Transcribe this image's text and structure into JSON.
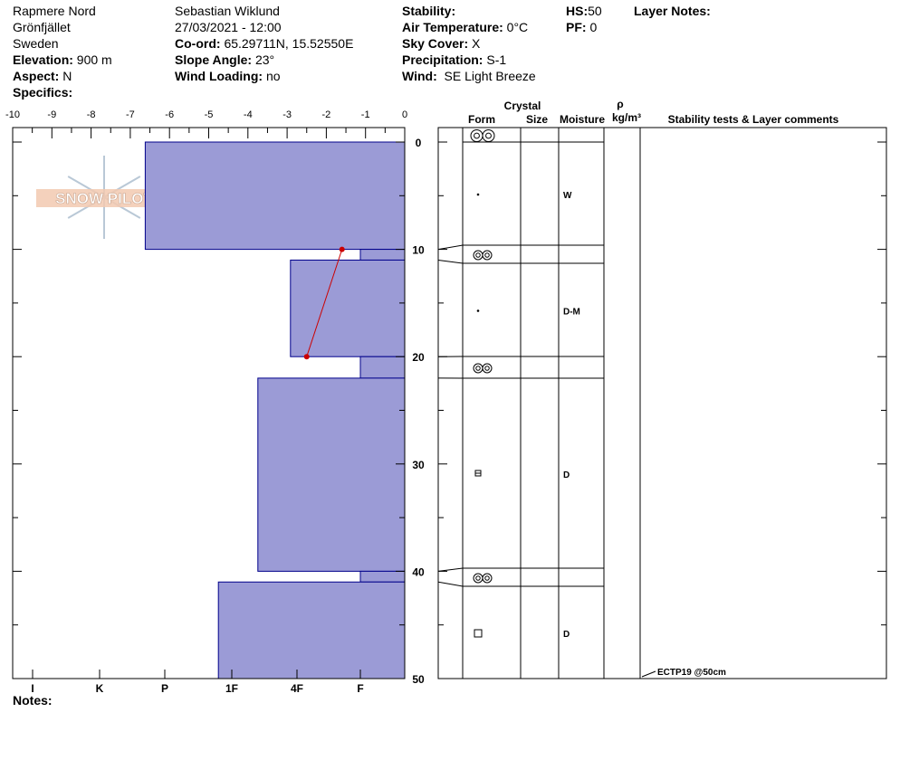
{
  "header": {
    "location": "Rapmere Nord",
    "area": "Grönfjället",
    "country": "Sweden",
    "elevation_label": "Elevation:",
    "elevation_value": "900 m",
    "aspect_label": "Aspect:",
    "aspect_value": "N",
    "specifics_label": "Specifics:",
    "observer": "Sebastian Wiklund",
    "datetime": "27/03/2021 - 12:00",
    "coord_label": "Co-ord:",
    "coord_value": "65.29711N, 15.52550E",
    "slope_label": "Slope Angle:",
    "slope_value": "23°",
    "wind_loading_label": "Wind Loading:",
    "wind_loading_value": "no",
    "stability_label": "Stability:",
    "air_temp_label": "Air Temperature:",
    "air_temp_value": "0°C",
    "sky_cover_label": "Sky Cover:",
    "sky_cover_value": "X",
    "precip_label": "Precipitation:",
    "precip_value": "S-1",
    "wind_label": "Wind:",
    "wind_value": "SE Light Breeze",
    "hs_label": "HS:",
    "hs_value": "50",
    "pf_label": "PF:",
    "pf_value": "0",
    "layer_notes_label": "Layer Notes:"
  },
  "notes_label": "Notes:",
  "logo_text": "SNOW PILOT",
  "colors": {
    "fill": "#9b9bd6",
    "stroke": "#00008b",
    "temp": "#cc0000"
  },
  "chart_data": {
    "type": "bar",
    "temp_axis": {
      "min": -10,
      "max": 0,
      "ticks": [
        "-10",
        "-9",
        "-8",
        "-7",
        "-6",
        "-5",
        "-4",
        "-3",
        "-2",
        "-1",
        "0"
      ]
    },
    "hardness_axis": [
      "I",
      "K",
      "P",
      "1F",
      "4F",
      "F"
    ],
    "depth_axis": {
      "min": 0,
      "max": 50,
      "ticks": [
        "0",
        "10",
        "20",
        "30",
        "40",
        "50"
      ]
    },
    "hardness_profile": [
      {
        "top": 0,
        "bottom": 10,
        "hardness": 2.7
      },
      {
        "top": 10,
        "bottom": 11,
        "hardness": 6.0
      },
      {
        "top": 11,
        "bottom": 20,
        "hardness": 4.9
      },
      {
        "top": 20,
        "bottom": 22,
        "hardness": 6.0
      },
      {
        "top": 22,
        "bottom": 40,
        "hardness": 4.4
      },
      {
        "top": 40,
        "bottom": 41,
        "hardness": 6.0
      },
      {
        "top": 41,
        "bottom": 50,
        "hardness": 3.8
      }
    ],
    "temperature_profile": [
      {
        "depth": 10,
        "temp": -1.6
      },
      {
        "depth": 20,
        "temp": -2.5
      }
    ]
  },
  "table": {
    "crystal_label": "Crystal",
    "rho_label": "ρ",
    "form_label": "Form",
    "size_label": "Size",
    "moisture_label": "Moisture",
    "density_label": "kg/m³",
    "comments_label": "Stability tests & Layer comments",
    "layers": [
      {
        "top": 0,
        "bottom": 0,
        "form": "ice",
        "moisture": ""
      },
      {
        "top": 0,
        "bottom": 10,
        "form": "dot",
        "moisture": "W"
      },
      {
        "top": 10,
        "bottom": 11,
        "form": "ice",
        "moisture": ""
      },
      {
        "top": 11,
        "bottom": 20,
        "form": "dot",
        "moisture": "D-M"
      },
      {
        "top": 20,
        "bottom": 22,
        "form": "ice",
        "moisture": ""
      },
      {
        "top": 22,
        "bottom": 40,
        "form": "facet-round",
        "moisture": "D"
      },
      {
        "top": 40,
        "bottom": 41,
        "form": "ice",
        "moisture": ""
      },
      {
        "top": 41,
        "bottom": 50,
        "form": "square",
        "moisture": "D"
      }
    ],
    "stability_tests": [
      {
        "depth": 50,
        "text": "ECTP19 @50cm"
      }
    ]
  }
}
